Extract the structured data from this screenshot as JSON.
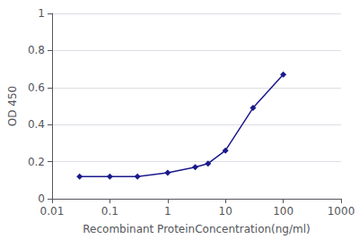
{
  "chart_data": {
    "type": "line",
    "x": [
      0.03,
      0.1,
      0.3,
      1,
      3,
      5,
      10,
      30,
      100
    ],
    "values": [
      0.12,
      0.12,
      0.12,
      0.14,
      0.17,
      0.19,
      0.26,
      0.49,
      0.67
    ],
    "color": "#1a1a8c",
    "marker": "diamond",
    "line_style": "solid",
    "xlabel": "Recombinant ProteinConcentration(ng/ml)",
    "ylabel": "OD 450",
    "log": "x",
    "xlim": [
      0.01,
      1000
    ],
    "ylim": [
      0,
      1
    ],
    "xticks": [
      0.01,
      0.1,
      1,
      10,
      100,
      1000
    ],
    "yticks": [
      0,
      0.2,
      0.4,
      0.6,
      0.8,
      1
    ],
    "grid": true
  }
}
